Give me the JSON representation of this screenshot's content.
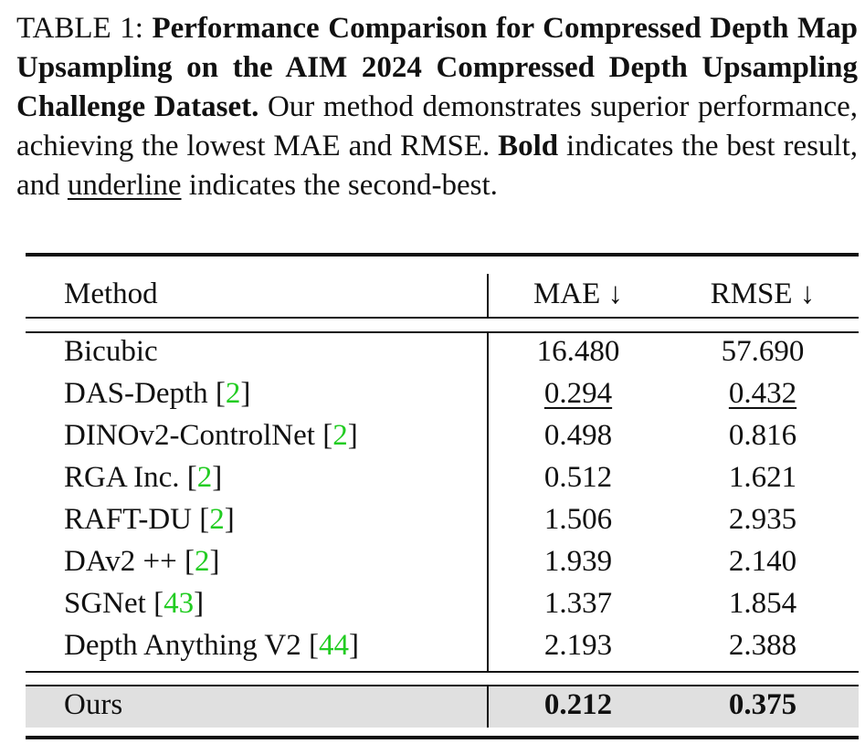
{
  "caption": {
    "prefix": "TABLE 1: ",
    "bold_title": "Performance Comparison for Compressed Depth Map Upsampling on the AIM 2024 Compressed Depth Upsampling Challenge Dataset.",
    "text1": " Our method demonstrates superior performance, achieving the lowest MAE and RMSE. ",
    "bold_word": "Bold",
    "text2": " indicates the best result, and ",
    "underline_word": "underline",
    "text3": " indicates the second-best."
  },
  "table": {
    "headers": {
      "method": "Method",
      "mae": "MAE ↓",
      "rmse": "RMSE ↓"
    },
    "rows": [
      {
        "method": "Bicubic",
        "ref": "",
        "mae": "16.480",
        "rmse": "57.690"
      },
      {
        "method": "DAS-Depth ",
        "ref": "2",
        "mae": "0.294",
        "rmse": "0.432"
      },
      {
        "method": "DINOv2-ControlNet ",
        "ref": "2",
        "mae": "0.498",
        "rmse": "0.816"
      },
      {
        "method": "RGA Inc. ",
        "ref": "2",
        "mae": "0.512",
        "rmse": "1.621"
      },
      {
        "method": "RAFT-DU ",
        "ref": "2",
        "mae": "1.506",
        "rmse": "2.935"
      },
      {
        "method": "DAv2 ++ ",
        "ref": "2",
        "mae": "1.939",
        "rmse": "2.140"
      },
      {
        "method": "SGNet ",
        "ref": "43",
        "mae": "1.337",
        "rmse": "1.854"
      },
      {
        "method": "Depth Anything V2 ",
        "ref": "44",
        "mae": "2.193",
        "rmse": "2.388"
      }
    ],
    "ours": {
      "method": "Ours",
      "mae": "0.212",
      "rmse": "0.375"
    }
  },
  "colors": {
    "citation": "#22cc22",
    "ours_row_bg": "#e0e0e0"
  }
}
